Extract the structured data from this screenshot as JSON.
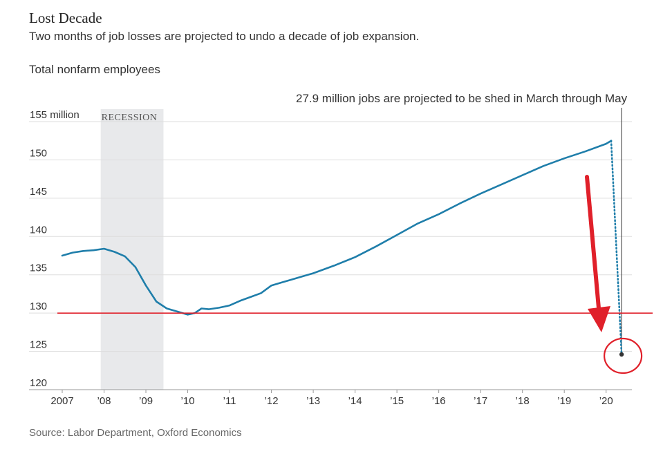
{
  "header": {
    "title": "Lost Decade",
    "subtitle": "Two months of job losses are projected to undo a decade of job expansion.",
    "y_label": "Total nonfarm employees"
  },
  "footer": {
    "source": "Source: Labor Department, Oxford Economics"
  },
  "colors": {
    "line": "#1f7eaa",
    "recession": "#e8e9eb",
    "grid": "#dddddd",
    "highlight": "#e0202a",
    "projection_marker": "#333333"
  },
  "chart_data": {
    "type": "line",
    "title": "Lost Decade",
    "ylabel": "Total nonfarm employees",
    "xlim": [
      2007.0,
      2020.55
    ],
    "ylim": [
      120,
      155
    ],
    "y_ticks": [
      {
        "value": 155,
        "label": "155 million"
      },
      {
        "value": 150,
        "label": "150"
      },
      {
        "value": 145,
        "label": "145"
      },
      {
        "value": 140,
        "label": "140"
      },
      {
        "value": 135,
        "label": "135"
      },
      {
        "value": 130,
        "label": "130"
      },
      {
        "value": 125,
        "label": "125"
      },
      {
        "value": 120,
        "label": "120"
      }
    ],
    "x_ticks": [
      {
        "value": 2007,
        "label": "2007"
      },
      {
        "value": 2008,
        "label": "’08"
      },
      {
        "value": 2009,
        "label": "’09"
      },
      {
        "value": 2010,
        "label": "’10"
      },
      {
        "value": 2011,
        "label": "’11"
      },
      {
        "value": 2012,
        "label": "’12"
      },
      {
        "value": 2013,
        "label": "’13"
      },
      {
        "value": 2014,
        "label": "’14"
      },
      {
        "value": 2015,
        "label": "’15"
      },
      {
        "value": 2016,
        "label": "’16"
      },
      {
        "value": 2017,
        "label": "’17"
      },
      {
        "value": 2018,
        "label": "’18"
      },
      {
        "value": 2019,
        "label": "’19"
      },
      {
        "value": 2020,
        "label": "’20"
      }
    ],
    "grid": true,
    "recession": {
      "label": "RECESSION",
      "start": 2007.92,
      "end": 2009.42
    },
    "series": [
      {
        "x": [
          2007.0,
          2007.25,
          2007.5,
          2007.75,
          2008.0,
          2008.25,
          2008.5,
          2008.75,
          2009.0,
          2009.25,
          2009.5,
          2009.75,
          2010.0,
          2010.17,
          2010.33,
          2010.5,
          2010.75,
          2011.0,
          2011.25,
          2011.5,
          2011.75,
          2012.0,
          2012.25,
          2012.5,
          2012.75,
          2013.0,
          2013.5,
          2014.0,
          2014.5,
          2015.0,
          2015.5,
          2016.0,
          2016.5,
          2017.0,
          2017.5,
          2018.0,
          2018.5,
          2019.0,
          2019.5,
          2020.0,
          2020.12
        ],
        "y": [
          137.5,
          137.9,
          138.1,
          138.2,
          138.4,
          138.0,
          137.4,
          136.0,
          133.6,
          131.5,
          130.6,
          130.2,
          129.8,
          130.0,
          130.6,
          130.5,
          130.7,
          131.0,
          131.6,
          132.1,
          132.6,
          133.6,
          134.0,
          134.4,
          134.8,
          135.2,
          136.2,
          137.3,
          138.7,
          140.2,
          141.7,
          142.9,
          144.3,
          145.6,
          146.8,
          148.0,
          149.2,
          150.2,
          151.1,
          152.1,
          152.5
        ]
      }
    ],
    "projection": {
      "x": [
        2020.12,
        2020.25,
        2020.37
      ],
      "y": [
        152.5,
        138.0,
        124.6
      ]
    },
    "annotation": {
      "text": "27.9 million jobs are projected to be shed in March through May",
      "x": 2020.37
    },
    "reference_line": {
      "value": 130
    }
  }
}
